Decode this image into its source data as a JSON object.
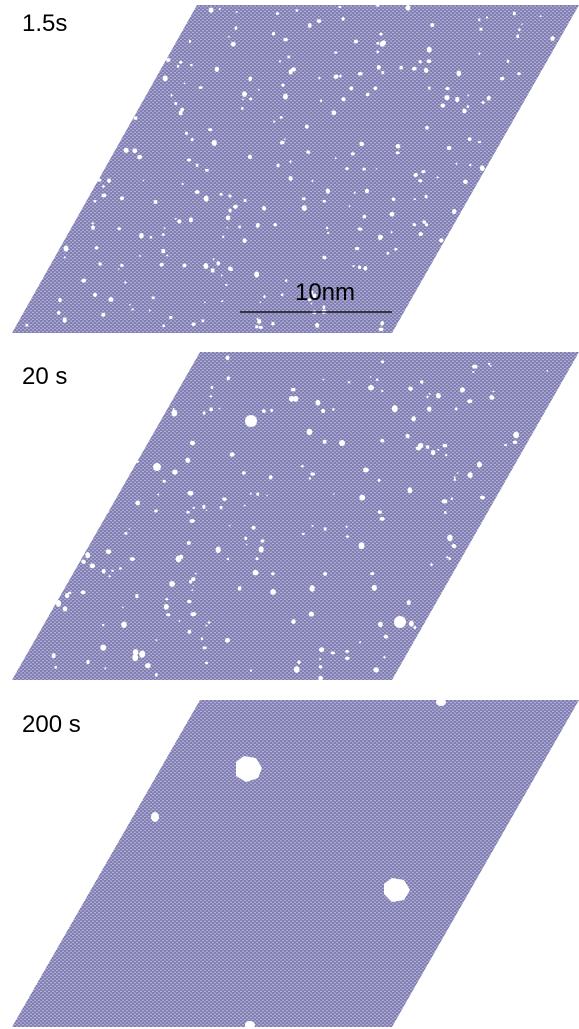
{
  "panels": [
    {
      "label": "1.5s"
    },
    {
      "label": "20 s"
    },
    {
      "label": "200 s"
    }
  ],
  "scale_bar": {
    "label": "10nm"
  }
}
